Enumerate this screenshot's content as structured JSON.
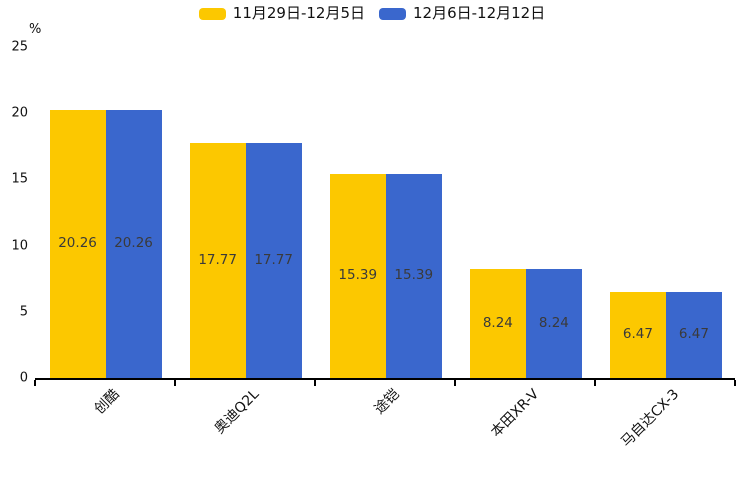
{
  "chart_data": {
    "type": "bar",
    "title": "",
    "categories": [
      "创酷",
      "奥迪Q2L",
      "途铠",
      "本田XR-V",
      "马自达CX-3"
    ],
    "series": [
      {
        "name": "11月29日-12月5日",
        "color": "#FCC800",
        "values": [
          20.26,
          17.77,
          15.39,
          8.24,
          6.47
        ]
      },
      {
        "name": "12月6日-12月12日",
        "color": "#3A67CD",
        "values": [
          20.26,
          17.77,
          15.39,
          8.24,
          6.47
        ]
      }
    ],
    "value_labels": [
      [
        "20.26",
        "17.77",
        "15.39",
        "8.24",
        "6.47"
      ],
      [
        "20.26",
        "17.77",
        "15.39",
        "8.24",
        "6.47"
      ]
    ],
    "xlabel": "",
    "ylabel": "%",
    "yticks": [
      "0",
      "5",
      "10",
      "15",
      "20",
      "25"
    ],
    "ylim": [
      0,
      25
    ],
    "grid": false,
    "legend_position": "top",
    "value_label_position": "center-of-bar",
    "colors": {
      "axis": "#000000",
      "tick_text": "#111111",
      "bar_value_text": "#3a3a3a",
      "background": "#ffffff"
    }
  }
}
